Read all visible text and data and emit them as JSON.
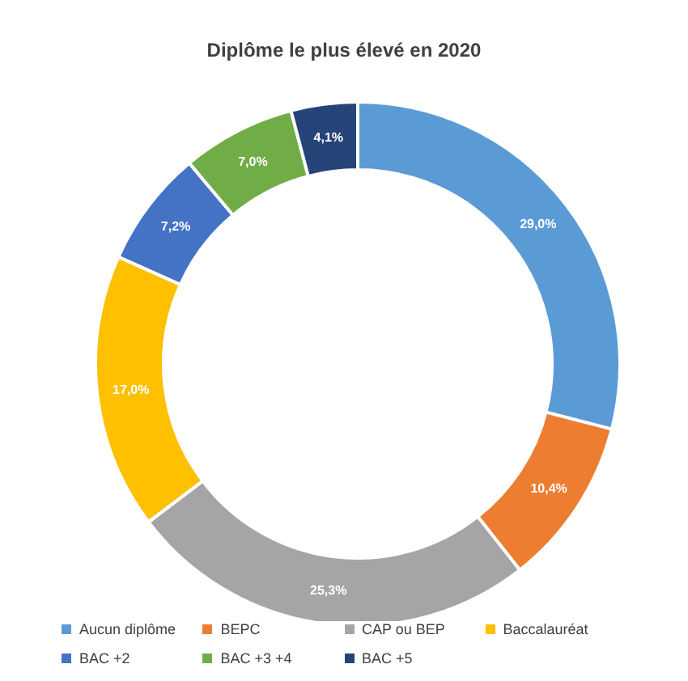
{
  "chart_data": {
    "type": "donut",
    "title": "Diplôme le plus élevé en 2020",
    "categories": [
      "Aucun diplôme",
      "BEPC",
      "CAP ou BEP",
      "Baccalauréat",
      "BAC +2",
      "BAC +3 +4",
      "BAC +5"
    ],
    "values": [
      29.0,
      10.4,
      25.3,
      17.0,
      7.2,
      7.0,
      4.1
    ],
    "colors": [
      "#5b9bd5",
      "#ed7d31",
      "#a5a5a5",
      "#ffc000",
      "#4472c4",
      "#70ad47",
      "#264478"
    ],
    "value_labels": [
      "29,0%",
      "10,4%",
      "25,3%",
      "17,0%",
      "7,2%",
      "7,0%",
      "4,1%"
    ],
    "legend": "bottom"
  }
}
